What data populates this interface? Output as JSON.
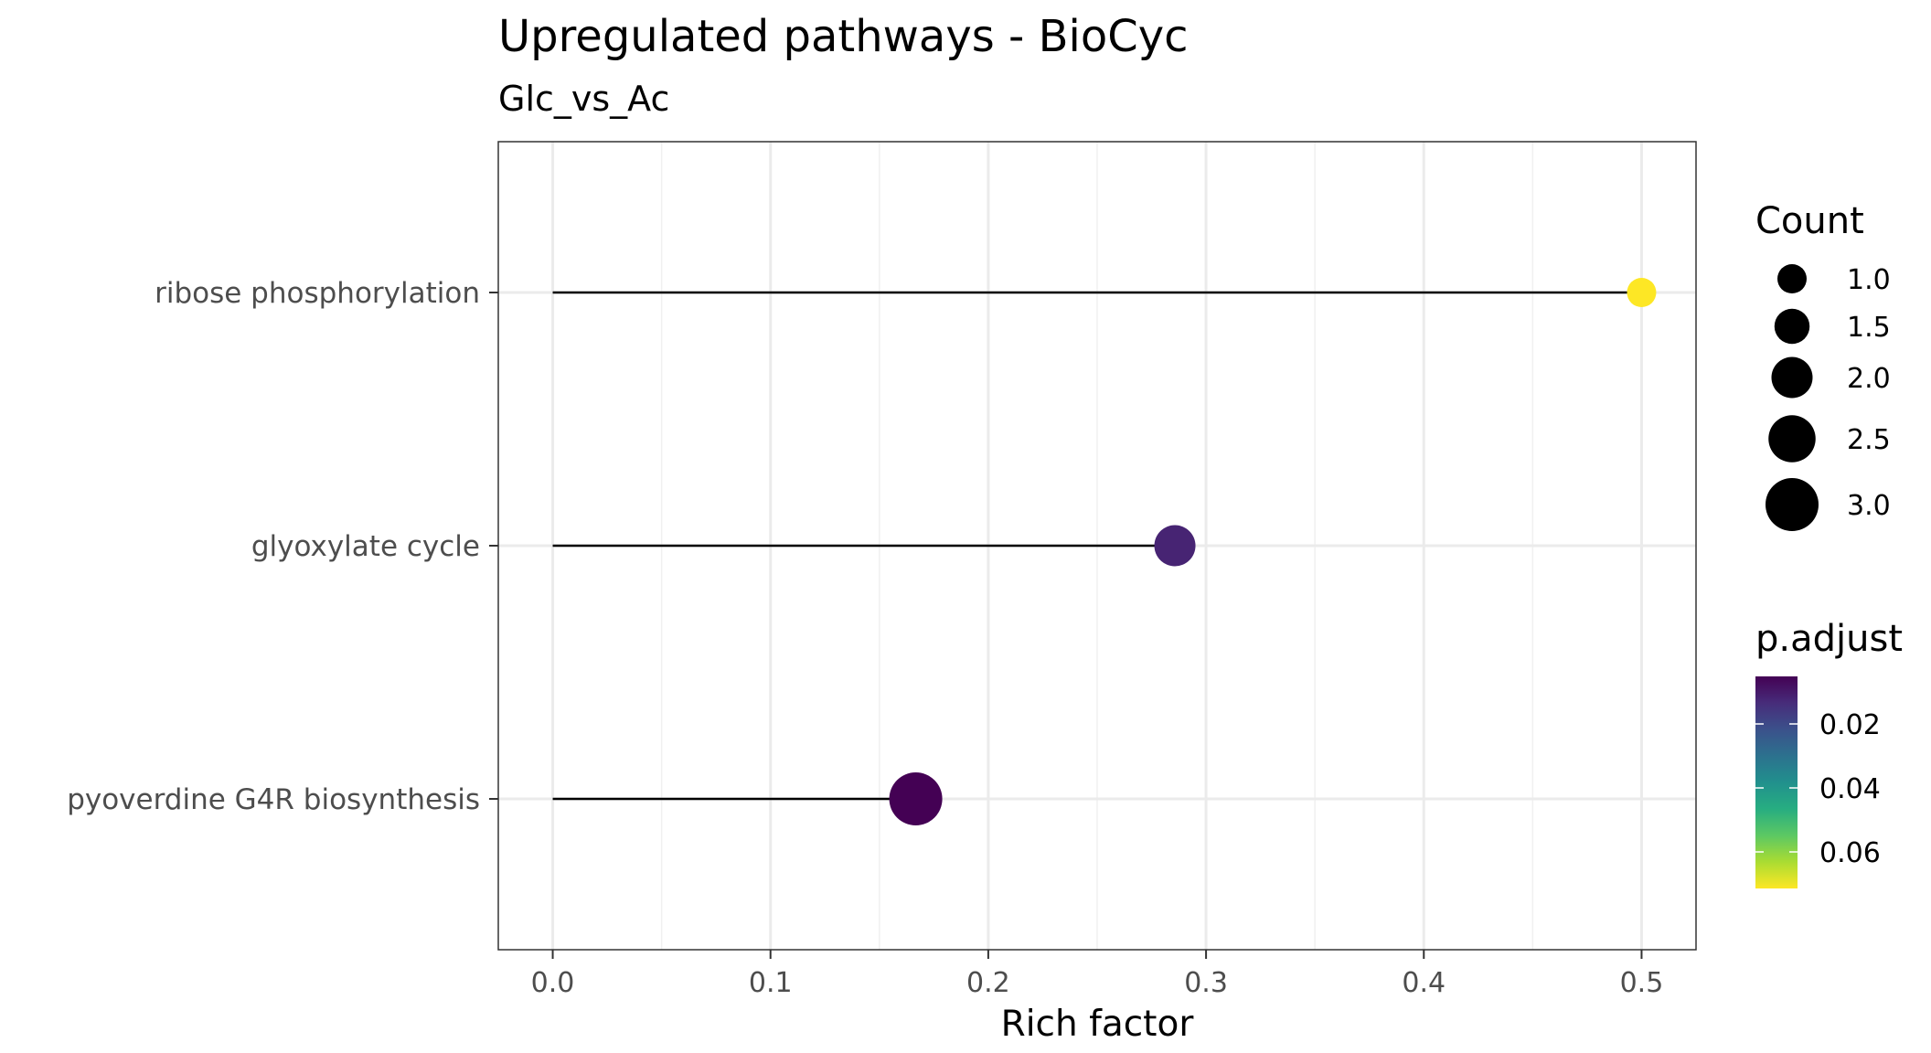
{
  "chart_data": {
    "type": "scatter",
    "title": "Upregulated pathways - BioCyc",
    "subtitle": "Glc_vs_Ac",
    "xlabel": "Rich factor",
    "ylabel": "",
    "xlim": [
      -0.025,
      0.525
    ],
    "x_ticks": [
      "0.0",
      "0.1",
      "0.2",
      "0.3",
      "0.4",
      "0.5"
    ],
    "x_tick_values": [
      0.0,
      0.1,
      0.2,
      0.3,
      0.4,
      0.5
    ],
    "grid": true,
    "style": "lollipop",
    "categories": [
      "ribose phosphorylation",
      "glyoxylate cycle",
      "pyoverdine G4R biosynthesis"
    ],
    "points": [
      {
        "label": "ribose phosphorylation",
        "rich_factor": 0.5,
        "count": 1,
        "p_adjust": 0.07,
        "color": "#FDE725"
      },
      {
        "label": "glyoxylate cycle",
        "rich_factor": 0.2857,
        "count": 2,
        "p_adjust": 0.012,
        "color": "#472473"
      },
      {
        "label": "pyoverdine G4R biosynthesis",
        "rich_factor": 0.1667,
        "count": 3,
        "p_adjust": 0.0005,
        "color": "#440154"
      }
    ],
    "legend_placement": "right",
    "size_legend": {
      "title": "Count",
      "labels": [
        "1.0",
        "1.5",
        "2.0",
        "2.5",
        "3.0"
      ],
      "values": [
        1.0,
        1.5,
        2.0,
        2.5,
        3.0
      ]
    },
    "color_legend": {
      "title": "p.adjust",
      "labels": [
        "0.02",
        "0.04",
        "0.06"
      ],
      "values": [
        0.02,
        0.04,
        0.06
      ],
      "range": [
        0.0,
        0.07
      ],
      "colors": [
        "#440154",
        "#472C7A",
        "#3B518B",
        "#2C718E",
        "#21908D",
        "#27AD81",
        "#5CC863",
        "#AADC32",
        "#FDE725"
      ]
    }
  }
}
